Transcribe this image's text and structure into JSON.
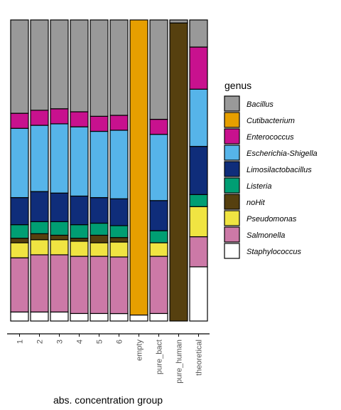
{
  "chart_data": {
    "type": "bar",
    "stacked": true,
    "normalized": true,
    "categories": [
      "1",
      "2",
      "3",
      "4",
      "5",
      "6",
      "empty",
      "pure_bact",
      "pure_human",
      "theoretical"
    ],
    "xlabel": "abs. concentration group",
    "ylabel": "",
    "ylim": [
      0,
      1
    ],
    "legend": {
      "title": "genus",
      "placement": "right"
    },
    "series": [
      {
        "name": "Staphylococcus",
        "color": "#FFFFFF",
        "values": [
          0.03,
          0.03,
          0.03,
          0.025,
          0.025,
          0.025,
          0.02,
          0.025,
          0.0,
          0.18
        ]
      },
      {
        "name": "Salmonella",
        "color": "#CC79A7",
        "values": [
          0.18,
          0.19,
          0.19,
          0.19,
          0.19,
          0.19,
          0.0,
          0.19,
          0.0,
          0.1
        ]
      },
      {
        "name": "Pseudomonas",
        "color": "#F0E442",
        "values": [
          0.05,
          0.05,
          0.05,
          0.05,
          0.045,
          0.05,
          0.0,
          0.045,
          0.0,
          0.1
        ]
      },
      {
        "name": "noHit",
        "color": "#56400F",
        "values": [
          0.015,
          0.02,
          0.015,
          0.01,
          0.025,
          0.015,
          0.0,
          0.0,
          0.99,
          0.0
        ]
      },
      {
        "name": "Listeria",
        "color": "#009E73",
        "values": [
          0.045,
          0.04,
          0.045,
          0.045,
          0.04,
          0.04,
          0.0,
          0.04,
          0.0,
          0.04
        ]
      },
      {
        "name": "Limosilactobacillus",
        "color": "#0F2D7A",
        "values": [
          0.09,
          0.1,
          0.095,
          0.095,
          0.085,
          0.09,
          0.0,
          0.1,
          0.0,
          0.16
        ]
      },
      {
        "name": "Escherichia-Shigella",
        "color": "#56B4E9",
        "values": [
          0.23,
          0.22,
          0.23,
          0.23,
          0.22,
          0.23,
          0.0,
          0.22,
          0.0,
          0.19
        ]
      },
      {
        "name": "Enterococcus",
        "color": "#C8118E",
        "values": [
          0.05,
          0.05,
          0.05,
          0.05,
          0.05,
          0.05,
          0.0,
          0.05,
          0.0,
          0.14
        ]
      },
      {
        "name": "Cutibacterium",
        "color": "#E69F00",
        "values": [
          0.0,
          0.0,
          0.0,
          0.0,
          0.0,
          0.0,
          0.98,
          0.0,
          0.0,
          0.0
        ]
      },
      {
        "name": "Bacillus",
        "color": "#999999",
        "values": [
          0.31,
          0.3,
          0.295,
          0.305,
          0.32,
          0.32,
          0.0,
          0.33,
          0.01,
          0.09
        ]
      }
    ],
    "legend_order": [
      "Bacillus",
      "Cutibacterium",
      "Enterococcus",
      "Escherichia-Shigella",
      "Limosilactobacillus",
      "Listeria",
      "noHit",
      "Pseudomonas",
      "Salmonella",
      "Staphylococcus"
    ]
  }
}
